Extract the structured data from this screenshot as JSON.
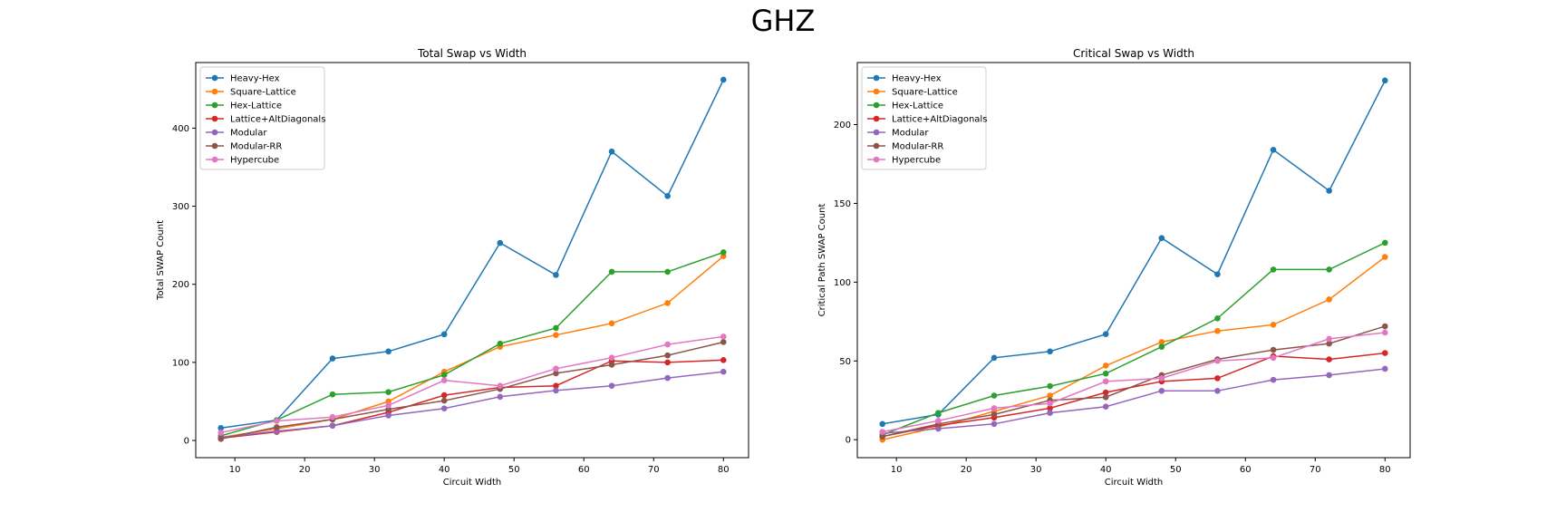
{
  "suptitle": "GHZ",
  "colors": {
    "Heavy-Hex": "#1f77b4",
    "Square-Lattice": "#ff7f0e",
    "Hex-Lattice": "#2ca02c",
    "Lattice+AltDiagonals": "#d62728",
    "Modular": "#9467bd",
    "Modular-RR": "#8c564b",
    "Hypercube": "#e377c2"
  },
  "chart_data": [
    {
      "type": "line",
      "title": "Total Swap vs Width",
      "xlabel": "Circuit Width",
      "ylabel": "Total SWAP Count",
      "xlim": [
        4.4,
        83.6
      ],
      "ylim": [
        -22,
        484
      ],
      "xticks": [
        10,
        20,
        30,
        40,
        50,
        60,
        70,
        80
      ],
      "yticks": [
        0,
        100,
        200,
        300,
        400
      ],
      "legend_position": "upper-left",
      "grid": false,
      "x": [
        8,
        16,
        24,
        32,
        40,
        48,
        56,
        64,
        72,
        80
      ],
      "series": [
        {
          "name": "Heavy-Hex",
          "values": [
            16,
            26,
            105,
            114,
            136,
            253,
            212,
            370,
            313,
            462
          ]
        },
        {
          "name": "Square-Lattice",
          "values": [
            4,
            15,
            27,
            50,
            88,
            120,
            135,
            150,
            176,
            236
          ]
        },
        {
          "name": "Hex-Lattice",
          "values": [
            6,
            26,
            59,
            62,
            84,
            124,
            144,
            216,
            216,
            241
          ]
        },
        {
          "name": "Lattice+AltDiagonals",
          "values": [
            3,
            11,
            19,
            36,
            58,
            68,
            70,
            102,
            100,
            103
          ]
        },
        {
          "name": "Modular",
          "values": [
            4,
            12,
            19,
            32,
            41,
            56,
            64,
            70,
            80,
            88
          ]
        },
        {
          "name": "Modular-RR",
          "values": [
            2,
            17,
            27,
            40,
            51,
            66,
            86,
            97,
            109,
            126
          ]
        },
        {
          "name": "Hypercube",
          "values": [
            10,
            25,
            30,
            45,
            77,
            70,
            92,
            106,
            123,
            133
          ]
        }
      ]
    },
    {
      "type": "line",
      "title": "Critical Swap vs Width",
      "xlabel": "Circuit Width",
      "ylabel": "Critical Path SWAP Count",
      "xlim": [
        4.4,
        83.6
      ],
      "ylim": [
        -11.4,
        239.4
      ],
      "xticks": [
        10,
        20,
        30,
        40,
        50,
        60,
        70,
        80
      ],
      "yticks": [
        0,
        50,
        100,
        150,
        200
      ],
      "legend_position": "upper-left",
      "grid": false,
      "x": [
        8,
        16,
        24,
        32,
        40,
        48,
        56,
        64,
        72,
        80
      ],
      "series": [
        {
          "name": "Heavy-Hex",
          "values": [
            10,
            16,
            52,
            56,
            67,
            128,
            105,
            184,
            158,
            228
          ]
        },
        {
          "name": "Square-Lattice",
          "values": [
            0,
            8,
            18,
            28,
            47,
            62,
            69,
            73,
            89,
            116
          ]
        },
        {
          "name": "Hex-Lattice",
          "values": [
            3,
            17,
            28,
            34,
            42,
            59,
            77,
            108,
            108,
            125
          ]
        },
        {
          "name": "Lattice+AltDiagonals",
          "values": [
            2,
            9,
            14,
            20,
            30,
            37,
            39,
            53,
            51,
            55
          ]
        },
        {
          "name": "Modular",
          "values": [
            4,
            7,
            10,
            17,
            21,
            31,
            31,
            38,
            41,
            45
          ]
        },
        {
          "name": "Modular-RR",
          "values": [
            2,
            10,
            16,
            25,
            27,
            41,
            51,
            57,
            61,
            72
          ]
        },
        {
          "name": "Hypercube",
          "values": [
            5,
            12,
            20,
            23,
            37,
            39,
            50,
            52,
            64,
            68
          ]
        }
      ]
    }
  ]
}
